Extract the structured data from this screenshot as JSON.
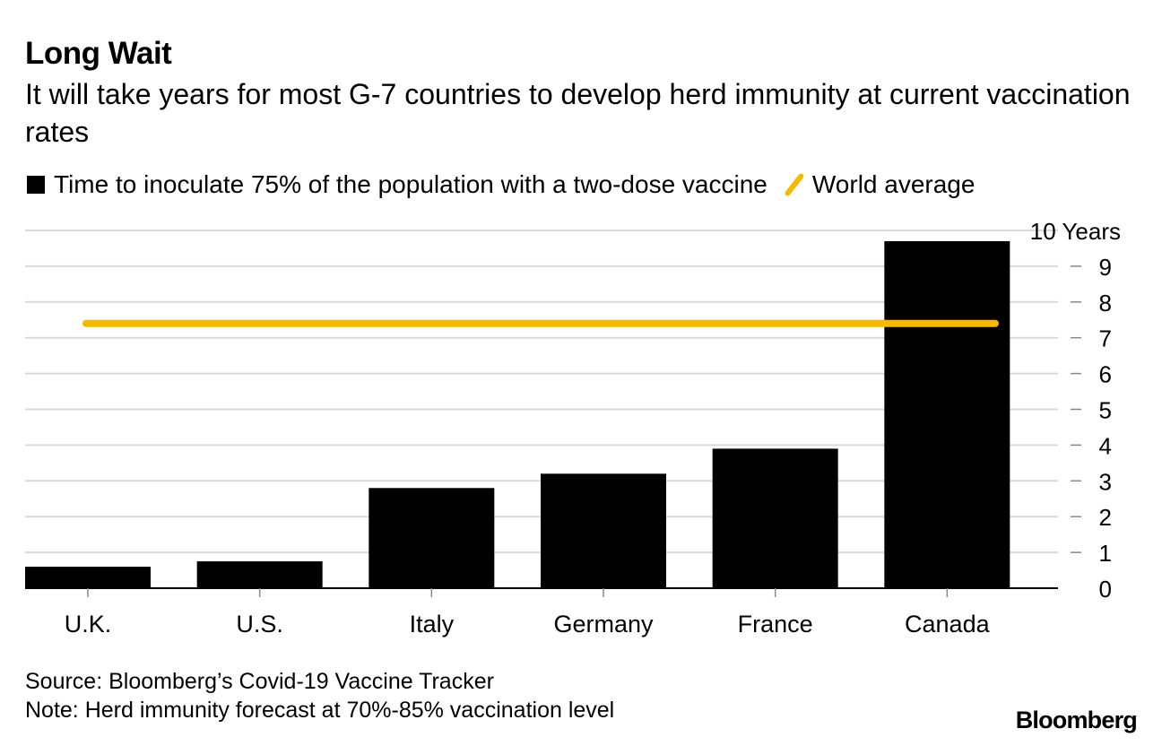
{
  "header": {
    "title": "Long Wait",
    "subtitle": "It will take years for most G-7 countries to develop herd immunity at current vaccination rates"
  },
  "legend": {
    "bars_label": "Time to inoculate 75% of the population with a two-dose vaccine",
    "line_label": "World average"
  },
  "footer": {
    "source": "Source: Bloomberg’s Covid-19 Vaccine Tracker",
    "note": "Note: Herd immunity forecast at 70%-85% vaccination level",
    "brand": "Bloomberg"
  },
  "colors": {
    "bar": "#000000",
    "average_line": "#f8b800",
    "grid": "#d9d9d9"
  },
  "chart_data": {
    "type": "bar",
    "title": "Long Wait",
    "categories": [
      "U.K.",
      "U.S.",
      "Italy",
      "Germany",
      "France",
      "Canada"
    ],
    "series": [
      {
        "name": "Time to inoculate 75% of the population with a two-dose vaccine",
        "values": [
          0.6,
          0.75,
          2.8,
          3.2,
          3.9,
          9.7
        ]
      }
    ],
    "reference_line": {
      "name": "World average",
      "value": 7.4
    },
    "ylim": [
      0,
      10
    ],
    "yticks": [
      0,
      1,
      2,
      3,
      4,
      5,
      6,
      7,
      8,
      9,
      10
    ],
    "ytick_labels": [
      "0",
      "1",
      "2",
      "3",
      "4",
      "5",
      "6",
      "7",
      "8",
      "9",
      "10 Years"
    ],
    "y_axis_position": "right",
    "grid": true,
    "xlabel": "",
    "ylabel": ""
  }
}
